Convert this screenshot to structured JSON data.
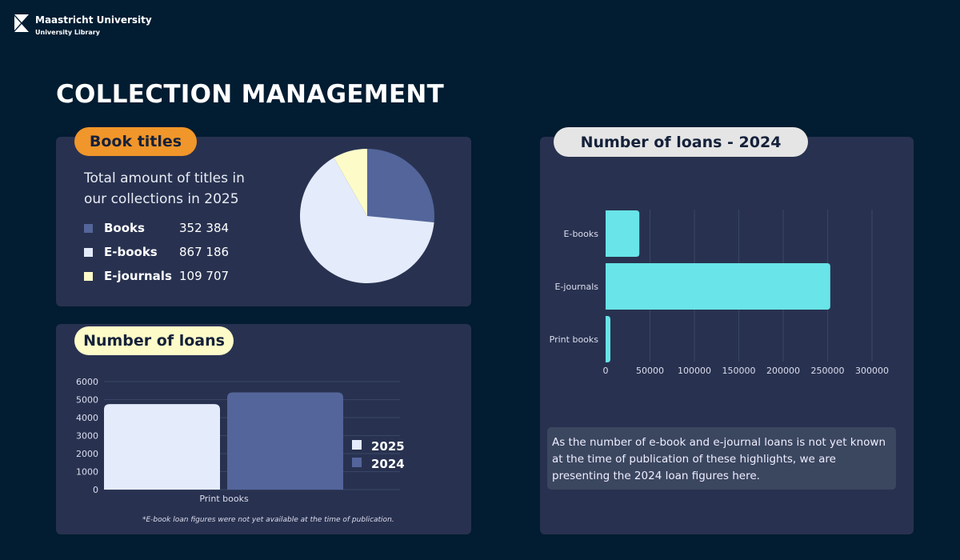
{
  "header": {
    "university": "Maastricht University",
    "library": "University Library",
    "title": "COLLECTION MANAGEMENT"
  },
  "book_titles": {
    "label": "Book titles",
    "description": "Total amount of titles in our collections in 2025",
    "items": [
      {
        "name": "Books",
        "value": "352 384",
        "color": "#53659a"
      },
      {
        "name": "E-books",
        "value": "867 186",
        "color": "#e4ebfb"
      },
      {
        "name": "E-journals",
        "value": "109 707",
        "color": "#fdfcc9"
      }
    ]
  },
  "loans": {
    "label": "Number of loans",
    "footnote": "*E-book loan figures were not yet available at the time of publication."
  },
  "loans_2024": {
    "label": "Number of loans - 2024",
    "note": "As the number of e-book and e-journal loans is not yet known at the time of publication of these highlights, we are presenting the 2024 loan figures here."
  },
  "chart_data": [
    {
      "type": "pie",
      "categories": [
        "Books",
        "E-books",
        "E-journals"
      ],
      "values": [
        352384,
        867186,
        109707
      ],
      "colors": [
        "#53659a",
        "#e4ebfb",
        "#fdfcc9"
      ]
    },
    {
      "type": "bar",
      "categories": [
        "Print books"
      ],
      "series": [
        {
          "name": "2025",
          "values": [
            4750
          ],
          "color": "#e4ebfb"
        },
        {
          "name": "2024",
          "values": [
            5400
          ],
          "color": "#53659a"
        }
      ],
      "ylim": [
        0,
        6000
      ],
      "yticks": [
        "0",
        "1000",
        "2000",
        "3000",
        "4000",
        "5000",
        "6000"
      ],
      "legend": "right",
      "grid": true
    },
    {
      "type": "bar",
      "orientation": "horizontal",
      "categories": [
        "E-books",
        "E-journals",
        "Print books"
      ],
      "values": [
        38000,
        253000,
        5400
      ],
      "color": "#69e4e8",
      "xlim": [
        0,
        300000
      ],
      "xticks": [
        "0",
        "50000",
        "100000",
        "150000",
        "200000",
        "250000",
        "300000"
      ],
      "grid": true
    }
  ]
}
